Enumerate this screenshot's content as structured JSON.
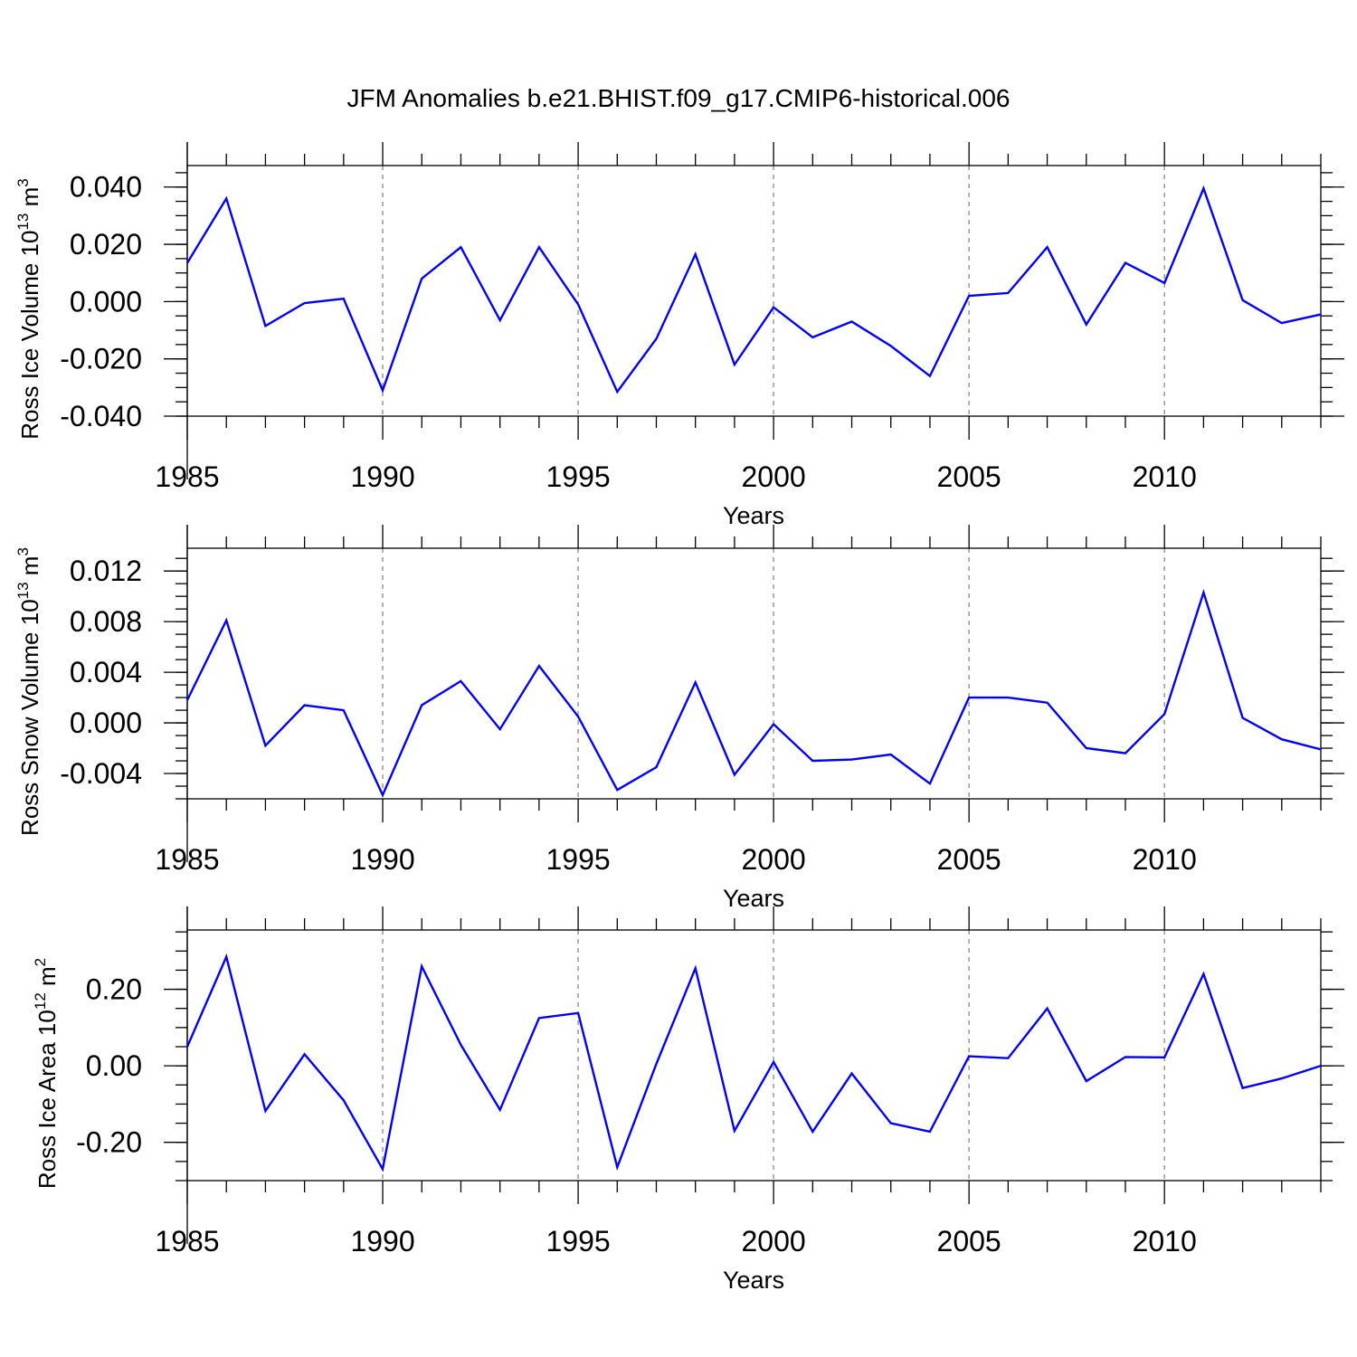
{
  "title": "JFM Anomalies b.e21.BHIST.f09_g17.CMIP6-historical.006",
  "colors": {
    "line": "#0000ff",
    "axis": "#000000",
    "grid": "#888888"
  },
  "chart_data": [
    {
      "type": "line",
      "ylabel": {
        "prefix": "Ross Ice Volume 10",
        "exp": "13",
        "unit": " m",
        "unit_exp": "3"
      },
      "xlabel": "Years",
      "xlim": [
        1985,
        2014
      ],
      "ylim": [
        -0.04,
        0.0475
      ],
      "yticks": [
        {
          "value": -0.04,
          "label": "-0.040"
        },
        {
          "value": -0.02,
          "label": "-0.020"
        },
        {
          "value": 0.0,
          "label": "0.000"
        },
        {
          "value": 0.02,
          "label": "0.020"
        },
        {
          "value": 0.04,
          "label": "0.040"
        }
      ],
      "yminor_step": 0.005,
      "xticks": [
        {
          "value": 1985,
          "label": "1985"
        },
        {
          "value": 1990,
          "label": "1990"
        },
        {
          "value": 1995,
          "label": "1995"
        },
        {
          "value": 2000,
          "label": "2000"
        },
        {
          "value": 2005,
          "label": "2005"
        },
        {
          "value": 2010,
          "label": "2010"
        }
      ],
      "grid_x": [
        1990,
        1995,
        2000,
        2005,
        2010
      ],
      "zero_line": false,
      "x": [
        1985,
        1986,
        1987,
        1988,
        1989,
        1990,
        1991,
        1992,
        1993,
        1994,
        1995,
        1996,
        1997,
        1998,
        1999,
        2000,
        2001,
        2002,
        2003,
        2004,
        2005,
        2006,
        2007,
        2008,
        2009,
        2010,
        2011,
        2012,
        2013,
        2014
      ],
      "values": [
        0.0135,
        0.036,
        -0.0085,
        -0.0005,
        0.001,
        -0.031,
        0.008,
        0.019,
        -0.0065,
        0.019,
        -0.001,
        -0.0315,
        -0.013,
        0.0165,
        -0.022,
        -0.002,
        -0.0125,
        -0.007,
        -0.0155,
        -0.026,
        0.002,
        0.003,
        0.019,
        -0.008,
        0.0135,
        0.0065,
        0.0395,
        0.0005,
        -0.0075,
        -0.0045
      ]
    },
    {
      "type": "line",
      "ylabel": {
        "prefix": "Ross Snow Volume 10",
        "exp": "13",
        "unit": " m",
        "unit_exp": "3"
      },
      "xlabel": "Years",
      "xlim": [
        1985,
        2014
      ],
      "ylim": [
        -0.006,
        0.0138
      ],
      "yticks": [
        {
          "value": -0.004,
          "label": "-0.004"
        },
        {
          "value": 0.0,
          "label": "0.000"
        },
        {
          "value": 0.004,
          "label": "0.004"
        },
        {
          "value": 0.008,
          "label": "0.008"
        },
        {
          "value": 0.012,
          "label": "0.012"
        }
      ],
      "yminor_step": 0.001,
      "xticks": [
        {
          "value": 1985,
          "label": "1985"
        },
        {
          "value": 1990,
          "label": "1990"
        },
        {
          "value": 1995,
          "label": "1995"
        },
        {
          "value": 2000,
          "label": "2000"
        },
        {
          "value": 2005,
          "label": "2005"
        },
        {
          "value": 2010,
          "label": "2010"
        }
      ],
      "grid_x": [
        1990,
        1995,
        2000,
        2005,
        2010
      ],
      "zero_line": false,
      "x": [
        1985,
        1986,
        1987,
        1988,
        1989,
        1990,
        1991,
        1992,
        1993,
        1994,
        1995,
        1996,
        1997,
        1998,
        1999,
        2000,
        2001,
        2002,
        2003,
        2004,
        2005,
        2006,
        2007,
        2008,
        2009,
        2010,
        2011,
        2012,
        2013,
        2014
      ],
      "values": [
        0.0018,
        0.0081,
        -0.0018,
        0.0014,
        0.001,
        -0.0057,
        0.0014,
        0.0033,
        -0.0005,
        0.0045,
        0.0005,
        -0.0053,
        -0.0035,
        0.0032,
        -0.0041,
        -0.0001,
        -0.003,
        -0.0029,
        -0.0025,
        -0.0048,
        0.002,
        0.002,
        0.0016,
        -0.002,
        -0.0024,
        0.0007,
        0.0103,
        0.0004,
        -0.0013,
        -0.0021
      ]
    },
    {
      "type": "line",
      "ylabel": {
        "prefix": "Ross Ice Area 10",
        "exp": "12",
        "unit": " m",
        "unit_exp": "2"
      },
      "xlabel": "Years",
      "xlim": [
        1985,
        2014
      ],
      "ylim": [
        -0.3,
        0.355
      ],
      "yticks": [
        {
          "value": -0.2,
          "label": "-0.20"
        },
        {
          "value": 0.0,
          "label": "0.00"
        },
        {
          "value": 0.2,
          "label": "0.20"
        }
      ],
      "yminor_step": 0.05,
      "xticks": [
        {
          "value": 1985,
          "label": "1985"
        },
        {
          "value": 1990,
          "label": "1990"
        },
        {
          "value": 1995,
          "label": "1995"
        },
        {
          "value": 2000,
          "label": "2000"
        },
        {
          "value": 2005,
          "label": "2005"
        },
        {
          "value": 2010,
          "label": "2010"
        }
      ],
      "grid_x": [
        1990,
        1995,
        2000,
        2005,
        2010
      ],
      "zero_line": false,
      "x": [
        1985,
        1986,
        1987,
        1988,
        1989,
        1990,
        1991,
        1992,
        1993,
        1994,
        1995,
        1996,
        1997,
        1998,
        1999,
        2000,
        2001,
        2002,
        2003,
        2004,
        2005,
        2006,
        2007,
        2008,
        2009,
        2010,
        2011,
        2012,
        2013,
        2014
      ],
      "values": [
        0.05,
        0.285,
        -0.118,
        0.03,
        -0.09,
        -0.27,
        0.26,
        0.055,
        -0.115,
        0.125,
        0.138,
        -0.265,
        0.005,
        0.255,
        -0.17,
        0.01,
        -0.172,
        -0.02,
        -0.15,
        -0.172,
        0.025,
        0.02,
        0.15,
        -0.04,
        0.023,
        0.022,
        0.24,
        -0.058,
        -0.033,
        0.0
      ]
    }
  ]
}
